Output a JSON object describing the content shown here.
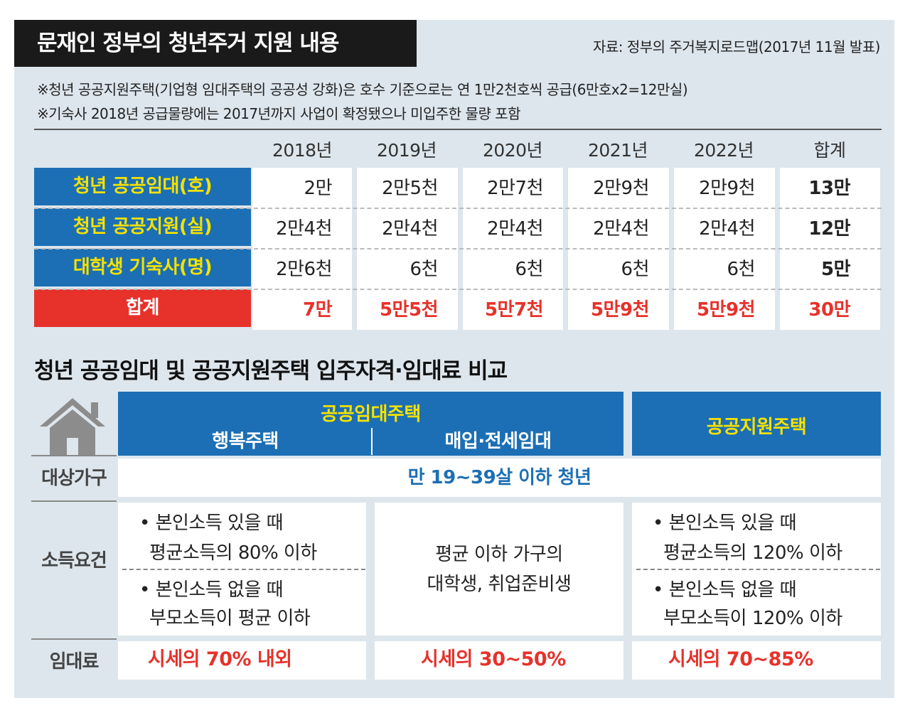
{
  "header": {
    "title": "문재인 정부의 청년주거 지원 내용",
    "source": "자료: 정부의 주거복지로드맵(2017년 11월 발표)",
    "notes": [
      "※청년 공공지원주택(기업형 임대주택의 공공성 강화)은 호수 기준으로는 연 1만2천호씩 공급(6만호x2=12만실)",
      "※기숙사 2018년 공급물량에는 2017년까지 사업이 확정됐으나 미입주한 물량 포함"
    ]
  },
  "supply_table": {
    "columns": [
      "2018년",
      "2019년",
      "2020년",
      "2021년",
      "2022년",
      "합계"
    ],
    "rows": [
      {
        "label": "청년 공공임대(호)",
        "values": [
          "2만",
          "2만5천",
          "2만7천",
          "2만9천",
          "2만9천",
          "13만"
        ]
      },
      {
        "label": "청년 공공지원(실)",
        "values": [
          "2만4천",
          "2만4천",
          "2만4천",
          "2만4천",
          "2만4천",
          "12만"
        ]
      },
      {
        "label": "대학생 기숙사(명)",
        "values": [
          "2만6천",
          "6천",
          "6천",
          "6천",
          "6천",
          "5만"
        ]
      },
      {
        "label": "합계",
        "values": [
          "7만",
          "5만5천",
          "5만7천",
          "5만9천",
          "5만9천",
          "30만"
        ]
      }
    ]
  },
  "comparison": {
    "title": "청년 공공임대 및 공공지원주택 입주자격·임대료 비교",
    "icon": "house-icon",
    "header_public_rental": "공공임대주택",
    "header_happy_housing": "행복주택",
    "header_purchase_lease": "매입·전세임대",
    "header_public_support": "공공지원주택",
    "target_label": "대상가구",
    "target_value": "만 19~39살 이하 청년",
    "income_label": "소득요건",
    "happy_income": [
      "• 본인소득 있을 때",
      "평균소득의 80% 이하",
      "• 본인소득 없을 때",
      "부모소득이 평균 이하"
    ],
    "purchase_income": [
      "평균 이하 가구의",
      "대학생, 취업준비생"
    ],
    "support_income": [
      "• 본인소득 있을 때",
      "평균소득의 120% 이하",
      "• 본인소득 없을 때",
      "부모소득이 120% 이하"
    ],
    "rent_label": "임대료",
    "happy_rent": "시세의 70% 내외",
    "purchase_rent": "시세의 30~50%",
    "support_rent": "시세의 70~85%"
  },
  "colors": {
    "blue": "#1c6fb4",
    "yellow": "#f5e100",
    "red": "#e6322b",
    "panel": "#dde6ed"
  }
}
